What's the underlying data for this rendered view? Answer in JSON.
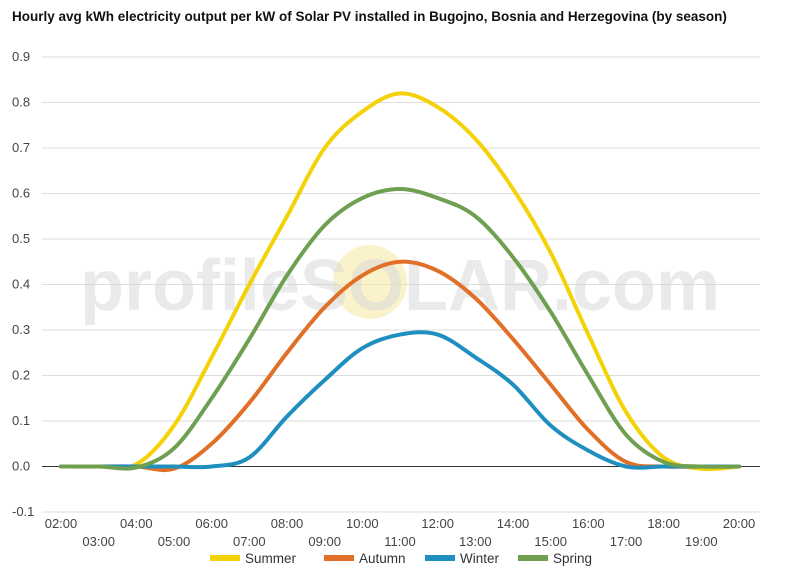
{
  "chart_data": {
    "type": "line",
    "title": "Hourly avg kWh electricity output per kW of Solar PV installed in Bugojno, Bosnia and Herzegovina (by season)",
    "watermark": "profileSOLAR.com",
    "x": [
      "02:00",
      "03:00",
      "04:00",
      "05:00",
      "06:00",
      "07:00",
      "08:00",
      "09:00",
      "10:00",
      "11:00",
      "12:00",
      "13:00",
      "14:00",
      "15:00",
      "16:00",
      "17:00",
      "18:00",
      "19:00",
      "20:00"
    ],
    "ylim": [
      -0.1,
      0.9
    ],
    "yticks": [
      "0.9",
      "0.8",
      "0.7",
      "0.6",
      "0.5",
      "0.4",
      "0.3",
      "0.2",
      "0.1",
      "0.0",
      "-0.1"
    ],
    "ytick_values": [
      0.9,
      0.8,
      0.7,
      0.6,
      0.5,
      0.4,
      0.3,
      0.2,
      0.1,
      0.0,
      -0.1
    ],
    "grid": true,
    "legend_position": "bottom",
    "series": [
      {
        "name": "Summer",
        "color": "#f4d20a",
        "values": [
          0.0,
          0.0,
          0.005,
          0.09,
          0.24,
          0.4,
          0.55,
          0.7,
          0.78,
          0.82,
          0.79,
          0.72,
          0.61,
          0.47,
          0.29,
          0.12,
          0.02,
          -0.005,
          0.0
        ]
      },
      {
        "name": "Autumn",
        "color": "#e07028",
        "values": [
          0.0,
          0.0,
          0.0,
          -0.005,
          0.05,
          0.14,
          0.25,
          0.35,
          0.42,
          0.45,
          0.43,
          0.37,
          0.28,
          0.18,
          0.08,
          0.01,
          0.0,
          0.0,
          0.0
        ]
      },
      {
        "name": "Winter",
        "color": "#1f8fbf",
        "values": [
          0.0,
          0.0,
          0.0,
          0.0,
          0.0,
          0.02,
          0.11,
          0.19,
          0.26,
          0.29,
          0.29,
          0.24,
          0.18,
          0.09,
          0.035,
          0.0,
          0.0,
          0.0,
          0.0
        ]
      },
      {
        "name": "Spring",
        "color": "#6fa052",
        "values": [
          0.0,
          0.0,
          -0.002,
          0.04,
          0.15,
          0.28,
          0.42,
          0.53,
          0.59,
          0.61,
          0.59,
          0.55,
          0.46,
          0.34,
          0.2,
          0.07,
          0.01,
          0.0,
          0.0
        ]
      }
    ]
  }
}
